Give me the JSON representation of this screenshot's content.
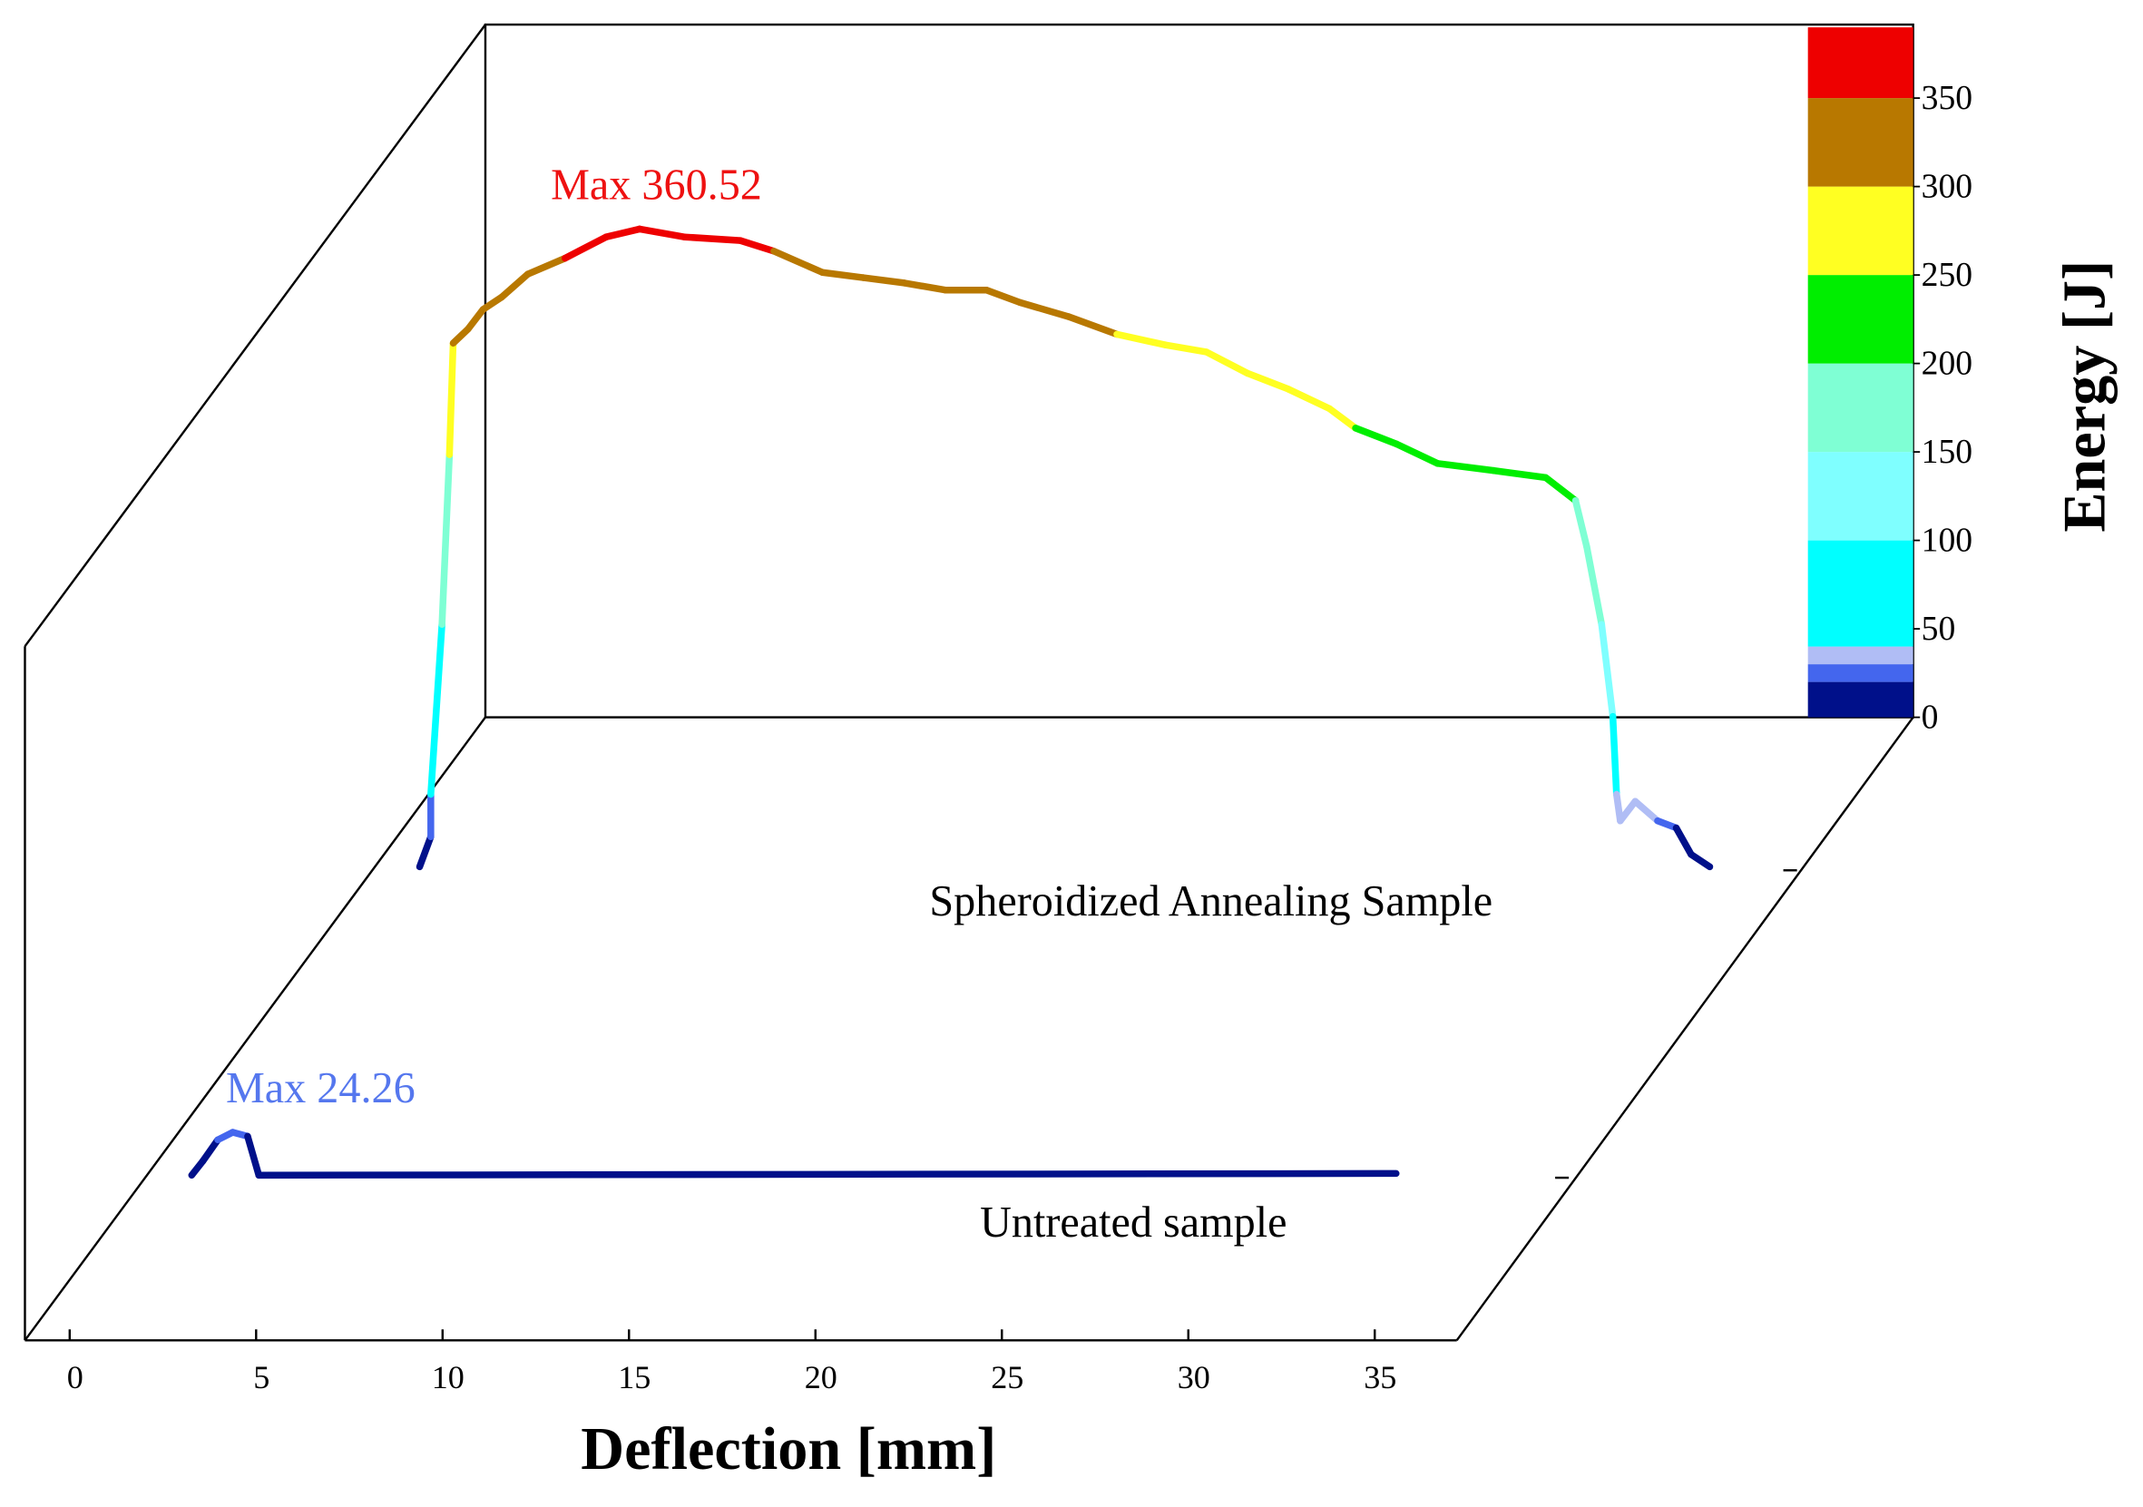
{
  "chart_data": {
    "type": "waterfall3d",
    "xlabel": "Deflection [mm]",
    "colorbar_label": "Energy [J]",
    "xlim": [
      -1.2,
      37.2
    ],
    "xticks": [
      0,
      5,
      10,
      15,
      20,
      25,
      30,
      35
    ],
    "zlim": [
      0,
      390
    ],
    "zticks": [
      0,
      50,
      100,
      150,
      200,
      250,
      300,
      350
    ],
    "color_levels": [
      0,
      20,
      30,
      40,
      100,
      150,
      200,
      250,
      300,
      350,
      390
    ],
    "level_colors": [
      "#00108a",
      "#4466ee",
      "#b0bdf5",
      "#00ffff",
      "#7fffff",
      "#7fffd4",
      "#00ee00",
      "#ffff22",
      "#b87800",
      "#ee0000"
    ],
    "series": [
      {
        "name": "Spheroidized Annealing Sample",
        "x": [
          0,
          0.3,
          0.3,
          0.6,
          0.8,
          0.9,
          1.3,
          1.7,
          2.2,
          2.9,
          3.9,
          5.0,
          5.9,
          7.1,
          8.6,
          9.5,
          10.8,
          11.9,
          13.0,
          14.1,
          15.2,
          16.1,
          17.4,
          18.7,
          20.0,
          21.1,
          22.2,
          23.3,
          24.4,
          25.1,
          26.2,
          27.3,
          28.8,
          30.2,
          31.0,
          31.3,
          31.7,
          32.0,
          32.1,
          32.2,
          32.6,
          33.2,
          33.7,
          34.1,
          34.6
        ],
        "values": [
          0,
          17,
          41,
          137,
          233,
          296,
          304,
          315,
          322,
          335,
          344,
          356,
          360.52,
          356,
          354,
          348,
          336,
          333,
          330,
          326,
          326,
          319,
          311,
          301,
          295,
          291,
          279,
          270,
          259,
          248,
          239,
          228,
          224,
          220,
          207,
          181,
          137,
          85,
          41,
          26,
          37,
          26,
          22,
          7,
          0
        ]
      },
      {
        "name": "Untreated sample",
        "x": [
          0,
          0.3,
          0.7,
          1.1,
          1.5,
          1.8,
          32.3
        ],
        "values": [
          0,
          8,
          20,
          24.26,
          22,
          0,
          1
        ]
      }
    ],
    "annotations": [
      {
        "text": "Max 360.52",
        "color": "#ee1111"
      },
      {
        "text": "Max 24.26",
        "color": "#5577ee"
      }
    ]
  }
}
